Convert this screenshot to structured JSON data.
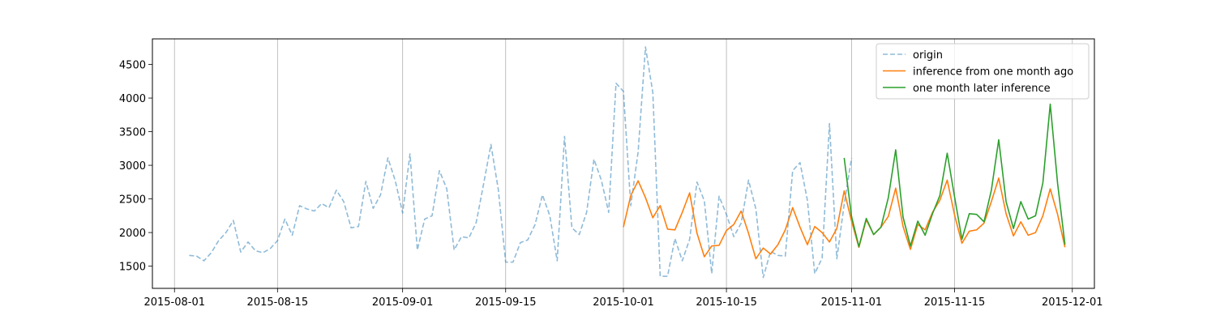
{
  "chart_data": {
    "type": "line",
    "title": "",
    "xlabel": "",
    "ylabel": "",
    "xlim": [
      "2015-07-29",
      "2015-12-04"
    ],
    "ylim": [
      1170,
      4880
    ],
    "grid": "x-only",
    "legend_position": "top-right",
    "x_ticks": [
      "2015-08-01",
      "2015-08-15",
      "2015-09-01",
      "2015-09-15",
      "2015-10-01",
      "2015-10-15",
      "2015-11-01",
      "2015-11-15",
      "2015-12-01"
    ],
    "y_ticks": [
      1500,
      2000,
      2500,
      3000,
      3500,
      4000,
      4500
    ],
    "series": [
      {
        "name": "origin",
        "color": "#1f77b4",
        "opacity": 0.5,
        "dash": "dashed",
        "start": "2015-08-03",
        "values": [
          1660,
          1650,
          1580,
          1700,
          1880,
          2000,
          2180,
          1710,
          1860,
          1730,
          1700,
          1760,
          1880,
          2200,
          1960,
          2400,
          2350,
          2320,
          2430,
          2370,
          2630,
          2460,
          2070,
          2090,
          2760,
          2360,
          2560,
          3110,
          2770,
          2290,
          3170,
          1740,
          2200,
          2250,
          2920,
          2650,
          1740,
          1940,
          1920,
          2150,
          2720,
          3310,
          2640,
          1560,
          1560,
          1850,
          1890,
          2120,
          2560,
          2250,
          1580,
          3430,
          2070,
          1970,
          2300,
          3090,
          2780,
          2300,
          4220,
          4100,
          2400,
          3200,
          4760,
          4080,
          1350,
          1350,
          1910,
          1580,
          1900,
          2750,
          2470,
          1390,
          2540,
          2270,
          1940,
          2140,
          2780,
          2350,
          1330,
          1720,
          1660,
          1650,
          2920,
          3040,
          2480,
          1390,
          1620,
          3620,
          1610,
          2420,
          3110
        ]
      },
      {
        "name": "inference from one month ago",
        "color": "#ff7f0e",
        "dash": "solid",
        "start": "2015-10-01",
        "values": [
          2080,
          2550,
          2770,
          2520,
          2220,
          2400,
          2050,
          2040,
          2300,
          2590,
          1990,
          1640,
          1800,
          1810,
          2030,
          2120,
          2320,
          1990,
          1610,
          1770,
          1680,
          1820,
          2040,
          2370,
          2080,
          1820,
          2090,
          2000,
          1860,
          2060,
          2620,
          2170,
          1780,
          2190,
          1970,
          2080,
          2240,
          2660,
          2090,
          1750,
          2120,
          2040,
          2300,
          2480,
          2780,
          2260,
          1840,
          2020,
          2040,
          2140,
          2460,
          2810,
          2280,
          1950,
          2160,
          1960,
          2000,
          2250,
          2650,
          2270,
          1780
        ]
      },
      {
        "name": "one month later inference",
        "color": "#2ca02c",
        "dash": "solid",
        "start": "2015-10-31",
        "values": [
          3110,
          2240,
          1790,
          2210,
          1970,
          2080,
          2520,
          3230,
          2230,
          1800,
          2170,
          1960,
          2280,
          2550,
          3180,
          2530,
          1900,
          2280,
          2270,
          2160,
          2630,
          3380,
          2460,
          2060,
          2460,
          2200,
          2250,
          2740,
          3910,
          2730,
          1820
        ]
      }
    ]
  }
}
